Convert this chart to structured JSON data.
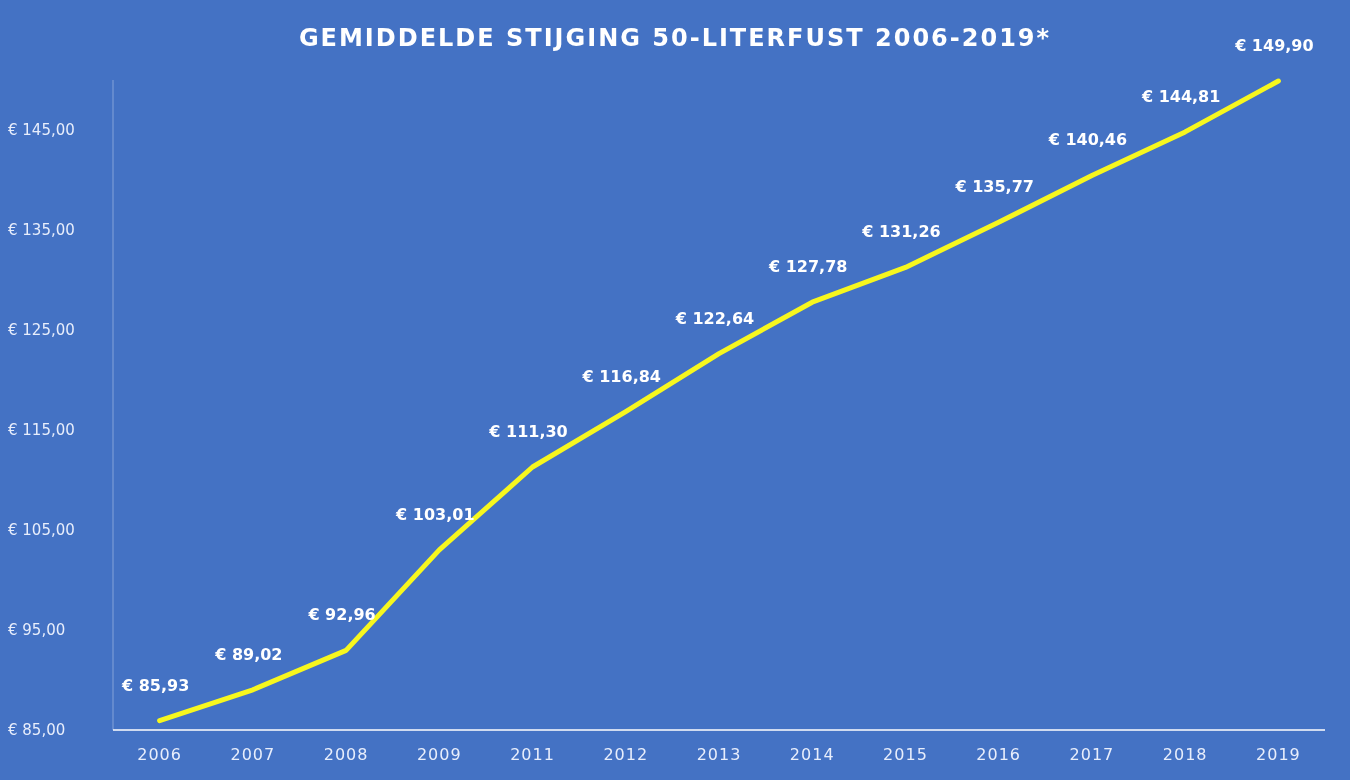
{
  "chart_data": {
    "type": "line",
    "title": "GEMIDDELDE STIJGING 50-LITERFUST 2006-2019*",
    "categories": [
      "2006",
      "2007",
      "2008",
      "2009",
      "2011",
      "2012",
      "2013",
      "2014",
      "2015",
      "2016",
      "2017",
      "2018",
      "2019"
    ],
    "values": [
      85.93,
      89.02,
      92.96,
      103.01,
      111.3,
      116.84,
      122.64,
      127.78,
      131.26,
      135.77,
      140.46,
      144.81,
      149.9
    ],
    "value_labels": [
      "€ 85,93",
      "€ 89,02",
      "€ 92,96",
      "€ 103,01",
      "€ 111,30",
      "€ 116,84",
      "€ 122,64",
      "€ 127,78",
      "€ 131,26",
      "€ 135,77",
      "€ 140,46",
      "€ 144,81",
      "€ 149,90"
    ],
    "color": "#f7f71e",
    "ylim": [
      85,
      150
    ],
    "yticks": [
      {
        "value": 85,
        "label": "€ 85,00"
      },
      {
        "value": 95,
        "label": "€ 95,00"
      },
      {
        "value": 105,
        "label": "€ 105,00"
      },
      {
        "value": 115,
        "label": "€ 115,00"
      },
      {
        "value": 125,
        "label": "€ 125,00"
      },
      {
        "value": 135,
        "label": "€ 135,00"
      },
      {
        "value": 145,
        "label": "€ 145,00"
      }
    ],
    "marker": "none",
    "line_style": "solid"
  }
}
